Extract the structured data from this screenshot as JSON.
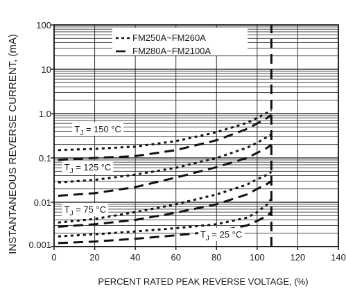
{
  "chart_data": {
    "type": "line",
    "xlabel": "PERCENT RATED PEAK REVERSE VOLTAGE, (%)",
    "ylabel": "INSTANTANEOUS REVERSE CURRENT, (mA)",
    "xlim": [
      0,
      140
    ],
    "ylim": [
      0.001,
      100
    ],
    "yscale": "log",
    "grid": true,
    "x_ticks": [
      0,
      20,
      40,
      60,
      80,
      100,
      120,
      140
    ],
    "x_tick_labels": [
      "0",
      "20",
      "40",
      "60",
      "80",
      "100",
      "120",
      "140"
    ],
    "y_ticks": [
      0.001,
      0.01,
      0.1,
      1,
      10,
      100
    ],
    "y_tick_labels": [
      "0.001",
      "0.01",
      "0.1",
      "1.0",
      "10",
      "100"
    ],
    "legend": {
      "placement": "top-center",
      "entries": [
        {
          "label": "FM250A~FM260A",
          "style": "short-dash"
        },
        {
          "label": "FM280A~FM2100A",
          "style": "long-dash"
        }
      ]
    },
    "annotations": [
      {
        "text": "T",
        "sub": "J",
        "rest": " = 150 °C",
        "x": 10,
        "y": 0.38
      },
      {
        "text": "T",
        "sub": "J",
        "rest": " = 125 °C",
        "x": 5,
        "y": 0.052
      },
      {
        "text": "T",
        "sub": "J",
        "rest": " = 75 °C",
        "x": 5,
        "y": 0.0058
      },
      {
        "text": "T",
        "sub": "J",
        "rest": " = 25 °C",
        "x": 72,
        "y": 0.0016
      }
    ],
    "series": [
      {
        "style": "short-dash",
        "x": [
          2,
          20,
          40,
          60,
          80,
          95,
          100,
          105,
          107
        ],
        "y": [
          0.15,
          0.16,
          0.18,
          0.24,
          0.38,
          0.62,
          0.8,
          1.05,
          1.2
        ]
      },
      {
        "style": "long-dash",
        "x": [
          2,
          20,
          40,
          60,
          80,
          95,
          100,
          105,
          107
        ],
        "y": [
          0.09,
          0.1,
          0.11,
          0.15,
          0.25,
          0.45,
          0.6,
          0.8,
          0.95
        ]
      },
      {
        "style": "short-dash",
        "x": [
          2,
          20,
          40,
          60,
          80,
          95,
          100,
          105,
          107
        ],
        "y": [
          0.028,
          0.032,
          0.042,
          0.06,
          0.1,
          0.17,
          0.22,
          0.3,
          0.34
        ]
      },
      {
        "style": "long-dash",
        "x": [
          2,
          20,
          40,
          60,
          80,
          95,
          100,
          105,
          107
        ],
        "y": [
          0.014,
          0.016,
          0.022,
          0.036,
          0.062,
          0.1,
          0.13,
          0.17,
          0.2
        ]
      },
      {
        "style": "short-dash",
        "x": [
          2,
          20,
          40,
          60,
          80,
          95,
          100,
          105,
          107
        ],
        "y": [
          0.0035,
          0.0042,
          0.006,
          0.009,
          0.015,
          0.025,
          0.033,
          0.042,
          0.048
        ]
      },
      {
        "style": "long-dash",
        "x": [
          2,
          20,
          40,
          60,
          80,
          95,
          100,
          105,
          107
        ],
        "y": [
          0.0028,
          0.0032,
          0.004,
          0.0058,
          0.009,
          0.015,
          0.02,
          0.026,
          0.03
        ]
      },
      {
        "style": "short-dash",
        "x": [
          2,
          20,
          40,
          60,
          80,
          95,
          100,
          105,
          107
        ],
        "y": [
          0.0017,
          0.0019,
          0.0022,
          0.0026,
          0.0032,
          0.0045,
          0.006,
          0.009,
          0.012
        ]
      },
      {
        "style": "long-dash",
        "x": [
          2,
          20,
          40,
          60,
          80,
          95,
          100,
          105,
          107
        ],
        "y": [
          0.0012,
          0.0013,
          0.0015,
          0.0018,
          0.0022,
          0.003,
          0.0038,
          0.005,
          0.006
        ]
      },
      {
        "style": "long-dash",
        "x": [
          107,
          107
        ],
        "y": [
          0.001,
          100
        ]
      }
    ]
  }
}
